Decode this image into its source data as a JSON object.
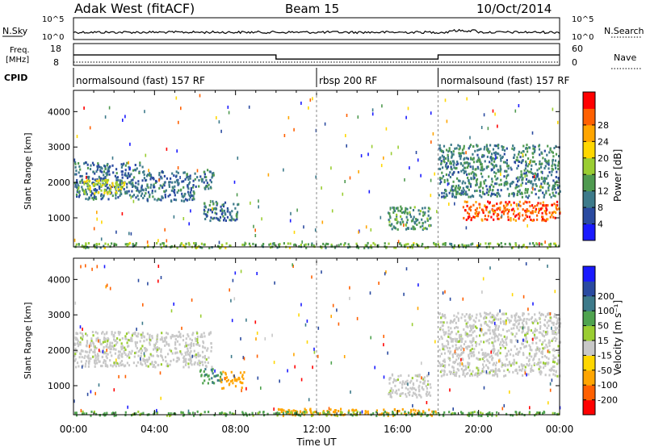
{
  "header": {
    "station": "Adak West (fitACF)",
    "beam": "Beam 15",
    "date": "10/Oct/2014"
  },
  "noise_panel": {
    "left_label": "N.Sky",
    "left_ticks": [
      "10^5",
      "10^0"
    ],
    "right_ticks": [
      "10^5",
      "10^0"
    ],
    "right_label": "N.Search"
  },
  "freq_panel": {
    "left_label_line1": "Freq.",
    "left_label_line2": "[MHz]",
    "left_ticks": [
      "18",
      "8"
    ],
    "right_ticks": [
      "60",
      "0"
    ],
    "right_label": "Nave",
    "freq_mhz_steps": [
      {
        "t0": 0,
        "t1": 10,
        "value": 12.5
      },
      {
        "t0": 10,
        "t1": 18,
        "value": 10.2
      },
      {
        "t0": 18,
        "t1": 24,
        "value": 12.5
      }
    ]
  },
  "cpid": {
    "label": "CPID",
    "modes": [
      {
        "t0": 0,
        "t1": 12,
        "text": "normalsound (fast) 157 RF"
      },
      {
        "t0": 12,
        "t1": 18,
        "text": "rbsp 200 RF"
      },
      {
        "t0": 18,
        "t1": 24,
        "text": "normalsound (fast) 157 RF"
      }
    ]
  },
  "power_colorbar": {
    "label": "Power [dB]",
    "ticks": [
      "4",
      "8",
      "12",
      "16",
      "20",
      "24",
      "28"
    ],
    "colors": [
      "#1a1aff",
      "#2a4aa0",
      "#3d7a8a",
      "#4f9a50",
      "#9acd32",
      "#ffd700",
      "#ffa500",
      "#ff6000",
      "#ff0000"
    ]
  },
  "velocity_colorbar": {
    "label": "Velocity [m s⁻¹]",
    "ticks": [
      "200",
      "100",
      "50",
      "15",
      "-15",
      "-50",
      "-100",
      "-200"
    ],
    "colors": [
      "#1a1aff",
      "#2a4aa0",
      "#3d7a8a",
      "#4fa34f",
      "#9acd32",
      "#c8c8c8",
      "#ffd700",
      "#ffa500",
      "#ff6000",
      "#ff0000"
    ]
  },
  "time_axis": {
    "label": "Time UT",
    "ticks": [
      "00:00",
      "04:00",
      "08:00",
      "12:00",
      "16:00",
      "20:00",
      "00:00"
    ]
  },
  "chart_data": [
    {
      "type": "heatmap",
      "name": "Power",
      "ylabel": "Slant Range [km]",
      "xlim_hours": [
        0,
        24
      ],
      "ylim_km": [
        180,
        4600
      ],
      "yticks": [
        1000,
        2000,
        3000,
        4000
      ],
      "scatter_regions": [
        {
          "t0": 0.0,
          "t1": 3.5,
          "r0": 1550,
          "r1": 2600,
          "level": 8
        },
        {
          "t0": 3.5,
          "t1": 6.0,
          "r0": 1500,
          "r1": 2350,
          "level": 8
        },
        {
          "t0": 6.0,
          "t1": 6.9,
          "r0": 1850,
          "r1": 2400,
          "level": 9
        },
        {
          "t0": 6.4,
          "t1": 8.1,
          "r0": 950,
          "r1": 1500,
          "level": 8
        },
        {
          "t0": 0.4,
          "t1": 2.5,
          "r0": 1700,
          "r1": 2100,
          "level": 18
        },
        {
          "t0": 15.5,
          "t1": 17.6,
          "r0": 700,
          "r1": 1350,
          "level": 11
        },
        {
          "t0": 18.0,
          "t1": 24.0,
          "r0": 1600,
          "r1": 3100,
          "level": 10
        },
        {
          "t0": 19.2,
          "t1": 24.0,
          "r0": 950,
          "r1": 1500,
          "level": 27
        },
        {
          "t0": 0.0,
          "t1": 24.0,
          "r0": 180,
          "r1": 320,
          "level": 14
        }
      ]
    },
    {
      "type": "heatmap",
      "name": "Velocity",
      "ylabel": "Slant Range [km]",
      "xlim_hours": [
        0,
        24
      ],
      "ylim_km": [
        180,
        4600
      ],
      "yticks": [
        1000,
        2000,
        3000,
        4000
      ],
      "scatter_regions": [
        {
          "t0": 0.0,
          "t1": 6.8,
          "r0": 1550,
          "r1": 2550,
          "velocity": 0
        },
        {
          "t0": 6.2,
          "t1": 7.3,
          "r0": 1100,
          "r1": 1500,
          "velocity": 30
        },
        {
          "t0": 7.2,
          "t1": 8.4,
          "r0": 950,
          "r1": 1450,
          "velocity": -60
        },
        {
          "t0": 15.5,
          "t1": 17.6,
          "r0": 700,
          "r1": 1350,
          "velocity": 0
        },
        {
          "t0": 18.0,
          "t1": 24.0,
          "r0": 1300,
          "r1": 3100,
          "velocity": 0
        },
        {
          "t0": 10.0,
          "t1": 18.0,
          "r0": 180,
          "r1": 380,
          "velocity": -50
        },
        {
          "t0": 0.0,
          "t1": 24.0,
          "r0": 180,
          "r1": 300,
          "velocity": 20
        }
      ]
    }
  ]
}
